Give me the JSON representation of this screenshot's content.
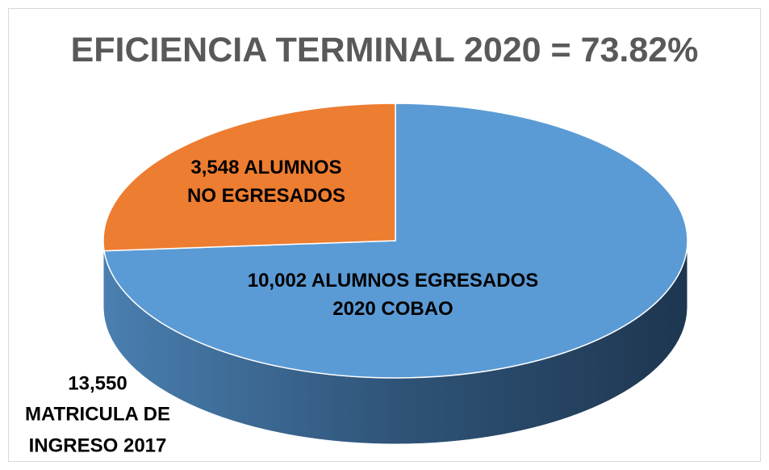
{
  "chart_data": {
    "type": "pie",
    "title": "EFICIENCIA TERMINAL 2020 = 73.82%",
    "values": [
      10002,
      3548
    ],
    "value_labels": [
      "10,002 ALUMNOS EGRESADOS\n2020 COBAO",
      "3,548 ALUMNOS\nNO EGRESADOS"
    ],
    "colors": [
      "#5b9bd5",
      "#ed7d31"
    ],
    "annotation": "13,550\nMATRICULA DE\nINGRESO 2017"
  }
}
